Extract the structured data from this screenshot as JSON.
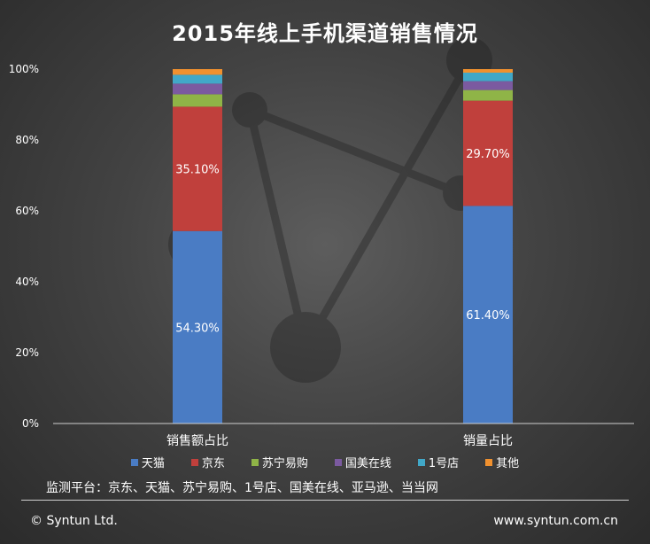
{
  "title": "2015年线上手机渠道销售情况",
  "source_note": "监测平台：京东、天猫、苏宁易购、1号店、国美在线、亚马逊、当当网",
  "copyright": "© Syntun Ltd.",
  "website": "www.syntun.com.cn",
  "colors": {
    "天猫": "#4a7cc4",
    "京东": "#c0403c",
    "苏宁易购": "#8fb447",
    "国美在线": "#7b5aa0",
    "1号店": "#41a8c8",
    "其他": "#f0912f"
  },
  "chart_data": {
    "type": "bar",
    "stacked": "percent",
    "categories": [
      "销售额占比",
      "销量占比"
    ],
    "series": [
      {
        "name": "天猫",
        "values": [
          54.3,
          61.4
        ],
        "labels": [
          "54.30%",
          "61.40%"
        ]
      },
      {
        "name": "京东",
        "values": [
          35.1,
          29.7
        ],
        "labels": [
          "35.10%",
          "29.70%"
        ]
      },
      {
        "name": "苏宁易购",
        "values": [
          3.5,
          3.0
        ]
      },
      {
        "name": "国美在线",
        "values": [
          3.0,
          2.5
        ]
      },
      {
        "name": "1号店",
        "values": [
          2.5,
          2.4
        ]
      },
      {
        "name": "其他",
        "values": [
          1.6,
          1.0
        ]
      }
    ],
    "y_ticks": [
      "0%",
      "20%",
      "40%",
      "60%",
      "80%",
      "100%"
    ],
    "ylim": [
      0,
      100
    ],
    "grid": false,
    "legend": "bottom"
  }
}
